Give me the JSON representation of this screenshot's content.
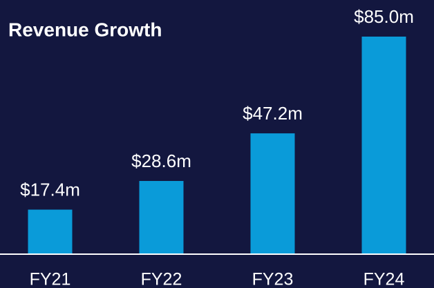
{
  "chart_data": {
    "type": "bar",
    "title": "Revenue Growth",
    "categories": [
      "FY21",
      "FY22",
      "FY23",
      "FY24"
    ],
    "values": [
      17.4,
      28.6,
      47.2,
      85.0
    ],
    "value_labels": [
      "$17.4m",
      "$28.6m",
      "$47.2m",
      "$85.0m"
    ],
    "color": "#0a9bd9"
  }
}
